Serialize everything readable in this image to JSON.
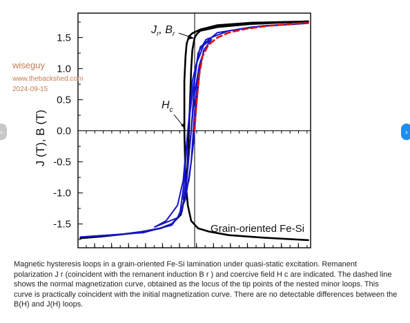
{
  "watermark": {
    "username": "wiseguy",
    "site": "www.thebackshed.com",
    "date": "2024-09-15"
  },
  "navigation": {
    "prev_icon": "chevron-left-icon",
    "next_icon": "chevron-right-icon",
    "prev_glyph": "‹",
    "next_glyph": "›",
    "next_color": "#1d8ef0",
    "prev_color": "#c8c8c8"
  },
  "caption": "Magnetic hysteresis loops in a grain-oriented Fe-Si lamination under quasi-static excitation. Remanent polarization J r (coincident with the remanent induction B r ) and coercive field H c are indicated. The dashed line shows the normal magnetization curve, obtained as the locus of the tip points of the nested minor loops. This curve is practically coincident with the initial magnetization curve. There are no detectable differences between the B(H) and J(H) loops.",
  "chart_data": {
    "type": "line",
    "title": "",
    "xlabel": "",
    "ylabel": "J (T), B (T)",
    "annotation": "Grain-oriented Fe-Si",
    "ylim": [
      -1.9,
      1.9
    ],
    "xlim": [
      -1,
      1
    ],
    "yticks": [
      -1.5,
      -1.0,
      -0.5,
      0.0,
      0.5,
      1.0,
      1.5
    ],
    "ytick_labels": [
      "-1.5",
      "-1.0",
      "-0.5",
      "0.0",
      "0.5",
      "1.0",
      "1.5"
    ],
    "markers": {
      "remanence": {
        "label_main": "J",
        "sub1": "r",
        "label_sep": ", B",
        "sub2": "r",
        "y": 1.54
      },
      "coercive": {
        "label_main": "H",
        "sub": "c",
        "x": -0.09,
        "y": 0.0
      }
    },
    "series": [
      {
        "name": "",
        "style": "major-loop",
        "color": "#000000",
        "points": [
          [
            -1.0,
            -1.73
          ],
          [
            -0.8,
            -1.7
          ],
          [
            -0.5,
            -1.64
          ],
          [
            -0.3,
            -1.57
          ],
          [
            -0.2,
            -1.5
          ],
          [
            -0.12,
            -1.35
          ],
          [
            -0.08,
            -1.0
          ],
          [
            -0.06,
            -0.5
          ],
          [
            -0.05,
            0.0
          ],
          [
            -0.04,
            0.5
          ],
          [
            -0.03,
            1.0
          ],
          [
            -0.02,
            1.3
          ],
          [
            0.0,
            1.5
          ],
          [
            0.02,
            1.56
          ],
          [
            0.05,
            1.61
          ],
          [
            0.2,
            1.67
          ],
          [
            0.5,
            1.72
          ],
          [
            1.0,
            1.76
          ],
          [
            0.5,
            1.74
          ],
          [
            0.2,
            1.7
          ],
          [
            0.05,
            1.63
          ],
          [
            -0.02,
            1.57
          ],
          [
            -0.05,
            1.52
          ],
          [
            -0.07,
            1.4
          ],
          [
            -0.08,
            1.2
          ],
          [
            -0.09,
            0.8
          ],
          [
            -0.09,
            0.0
          ],
          [
            -0.08,
            -0.8
          ],
          [
            -0.06,
            -1.2
          ],
          [
            -0.03,
            -1.45
          ],
          [
            0.03,
            -1.57
          ],
          [
            0.12,
            -1.62
          ],
          [
            0.3,
            -1.68
          ],
          [
            0.6,
            -1.72
          ],
          [
            1.0,
            -1.76
          ]
        ]
      },
      {
        "name": "",
        "style": "minor-loop",
        "color": "#1515c8",
        "points": [
          [
            -1.0,
            -1.71
          ],
          [
            -0.7,
            -1.68
          ],
          [
            -0.45,
            -1.62
          ],
          [
            -0.28,
            -1.56
          ],
          [
            -0.2,
            -1.5
          ],
          [
            -0.13,
            -1.35
          ],
          [
            -0.09,
            -0.8
          ],
          [
            -0.06,
            0.0
          ],
          [
            -0.02,
            0.8
          ],
          [
            0.05,
            1.35
          ],
          [
            0.2,
            1.58
          ],
          [
            0.5,
            1.67
          ],
          [
            1.0,
            1.73
          ],
          [
            0.6,
            1.69
          ],
          [
            0.3,
            1.61
          ],
          [
            0.1,
            1.47
          ],
          [
            0.03,
            1.25
          ],
          [
            0.0,
            0.8
          ],
          [
            -0.03,
            0.0
          ],
          [
            -0.07,
            -0.8
          ],
          [
            -0.11,
            -1.3
          ],
          [
            -0.2,
            -1.52
          ],
          [
            -0.45,
            -1.64
          ],
          [
            -1.0,
            -1.71
          ]
        ]
      },
      {
        "name": "",
        "style": "minor-loop",
        "color": "#1515c8",
        "points": [
          [
            -0.35,
            -1.55
          ],
          [
            -0.25,
            -1.45
          ],
          [
            -0.15,
            -1.2
          ],
          [
            -0.1,
            -0.8
          ],
          [
            -0.06,
            0.0
          ],
          [
            -0.02,
            0.6
          ],
          [
            0.02,
            1.1
          ],
          [
            0.08,
            1.38
          ],
          [
            0.15,
            1.47
          ],
          [
            0.08,
            1.3
          ],
          [
            0.03,
            0.9
          ],
          [
            0.0,
            0.3
          ],
          [
            -0.03,
            -0.5
          ],
          [
            -0.08,
            -1.1
          ],
          [
            -0.15,
            -1.4
          ],
          [
            -0.35,
            -1.55
          ]
        ]
      },
      {
        "name": "",
        "style": "minor-loop",
        "color": "#1515c8",
        "points": [
          [
            -0.1,
            -1.1
          ],
          [
            -0.06,
            -0.6
          ],
          [
            -0.03,
            0.0
          ],
          [
            0.0,
            0.6
          ],
          [
            0.04,
            1.05
          ],
          [
            0.08,
            1.28
          ],
          [
            0.05,
            1.05
          ],
          [
            0.02,
            0.5
          ],
          [
            -0.01,
            -0.2
          ],
          [
            -0.05,
            -0.8
          ],
          [
            -0.1,
            -1.1
          ]
        ]
      },
      {
        "name": "",
        "style": "normal-curve-dashed",
        "color": "#dd1111",
        "points": [
          [
            0.0,
            0.0
          ],
          [
            0.01,
            0.3
          ],
          [
            0.025,
            0.6
          ],
          [
            0.04,
            0.9
          ],
          [
            0.07,
            1.2
          ],
          [
            0.12,
            1.38
          ],
          [
            0.2,
            1.5
          ],
          [
            0.3,
            1.58
          ],
          [
            0.45,
            1.64
          ],
          [
            0.65,
            1.69
          ],
          [
            0.85,
            1.72
          ],
          [
            1.0,
            1.74
          ]
        ]
      }
    ]
  }
}
